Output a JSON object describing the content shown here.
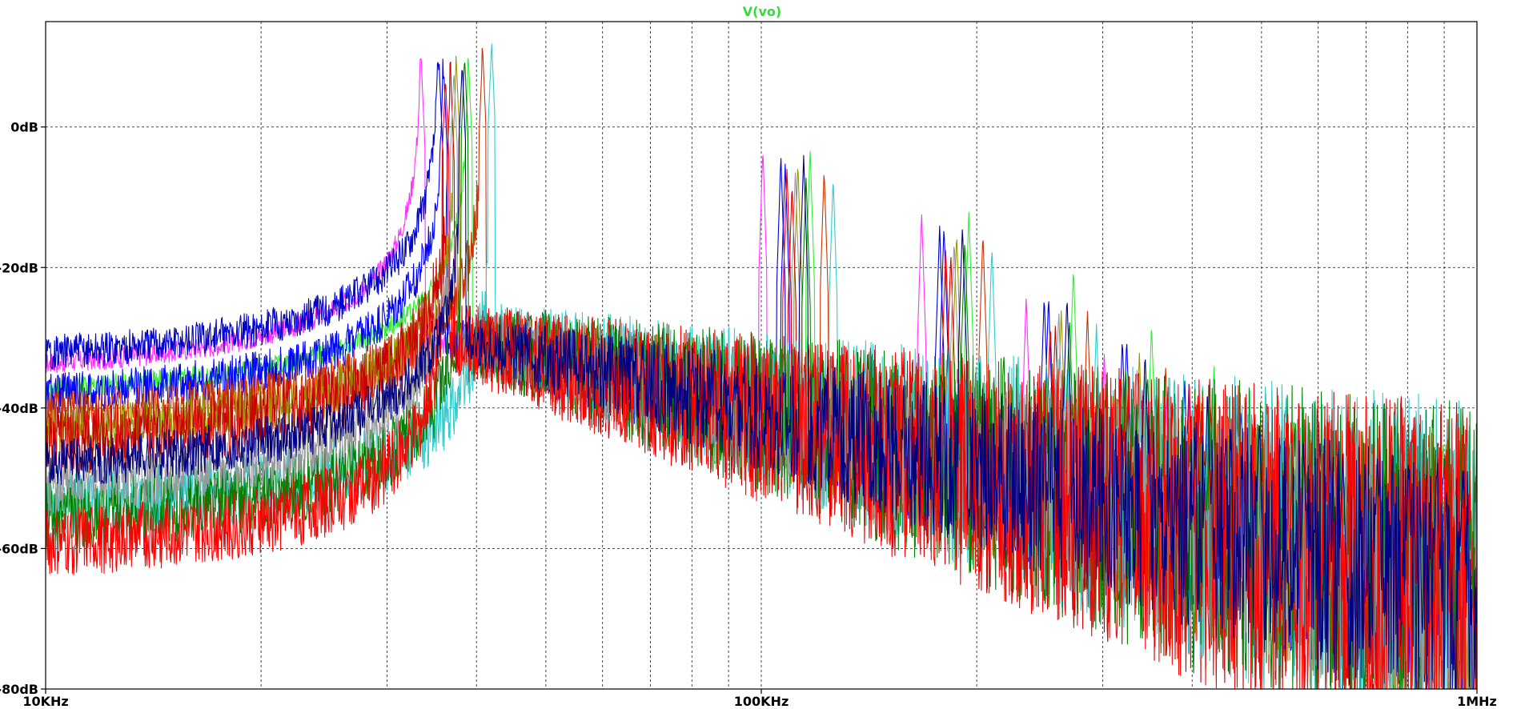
{
  "chart_data": {
    "type": "line",
    "title": "V(vo)",
    "title_color": "#33dd33",
    "xlabel": "",
    "ylabel": "",
    "x_scale": "log",
    "xlim": [
      10000,
      1000000
    ],
    "ylim": [
      -80,
      15
    ],
    "grid": true,
    "x_ticks": [
      {
        "value": 10000,
        "label": "10KHz"
      },
      {
        "value": 100000,
        "label": "100KHz"
      },
      {
        "value": 1000000,
        "label": "1MHz"
      }
    ],
    "y_ticks": [
      {
        "value": 0,
        "label": "0dB"
      },
      {
        "value": -20,
        "label": "-20dB"
      },
      {
        "value": -40,
        "label": "-40dB"
      },
      {
        "value": -60,
        "label": "-60dB"
      },
      {
        "value": -80,
        "label": "-80dB"
      }
    ],
    "series": [
      {
        "color": "#ff33ff",
        "fund_khz": 33.5,
        "low_db": -34.5,
        "peak_db": 9,
        "floor_db": -60,
        "noise": 1.5,
        "harm_db": [
          -3,
          -12,
          -24,
          -32,
          -38,
          -42,
          -45
        ]
      },
      {
        "color": "#0000cc",
        "fund_khz": 35.5,
        "low_db": -32.8,
        "peak_db": 8,
        "floor_db": -64,
        "noise": 2.5,
        "harm_db": [
          -4,
          -14,
          -24,
          -30,
          -36,
          -40,
          -44
        ]
      },
      {
        "color": "#33ee33",
        "fund_khz": 39.0,
        "low_db": -37.8,
        "peak_db": 9,
        "floor_db": -59,
        "noise": 1.5,
        "harm_db": [
          -3,
          -12,
          -20,
          -28,
          -34,
          -38,
          -42
        ]
      },
      {
        "color": "#0000ff",
        "fund_khz": 36.0,
        "low_db": -38.8,
        "peak_db": 8,
        "floor_db": -66,
        "noise": 3,
        "harm_db": [
          -5,
          -14,
          -24,
          -30,
          -36,
          -40,
          -44
        ]
      },
      {
        "color": "#cc3300",
        "fund_khz": 40.8,
        "low_db": -42.0,
        "peak_db": 11,
        "floor_db": -72,
        "noise": 4,
        "harm_db": [
          -6,
          -15,
          -26,
          -34,
          -40,
          -44,
          -48
        ]
      },
      {
        "color": "#999900",
        "fund_khz": 37.5,
        "low_db": -44.0,
        "peak_db": 9,
        "floor_db": -70,
        "noise": 3.5,
        "harm_db": [
          -5,
          -15,
          -26,
          -32,
          -38,
          -42,
          -46
        ]
      },
      {
        "color": "#cc0000",
        "fund_khz": 36.8,
        "low_db": -45.5,
        "peak_db": 7,
        "floor_db": -75,
        "noise": 5,
        "harm_db": [
          -8,
          -18,
          -28,
          -36,
          -42,
          -46,
          -50
        ]
      },
      {
        "color": "#33cccc",
        "fund_khz": 42.0,
        "low_db": -54.5,
        "peak_db": 12,
        "floor_db": -74,
        "noise": 5,
        "harm_db": [
          -7,
          -17,
          -28,
          -36,
          -42,
          -46,
          -50
        ]
      },
      {
        "color": "#008000",
        "fund_khz": 38.5,
        "low_db": -56.0,
        "peak_db": 10,
        "floor_db": -74,
        "noise": 5,
        "harm_db": [
          -7,
          -16,
          -27,
          -35,
          -41,
          -45,
          -49
        ]
      },
      {
        "color": "#999999",
        "fund_khz": 37.2,
        "low_db": -51.5,
        "peak_db": 8,
        "floor_db": -70,
        "noise": 4,
        "harm_db": [
          -6,
          -16,
          -26,
          -34,
          -40,
          -44,
          -48
        ]
      },
      {
        "color": "#ff0000",
        "fund_khz": 36.2,
        "low_db": -60.0,
        "peak_db": 7,
        "floor_db": -76,
        "noise": 5,
        "harm_db": [
          -6,
          -17,
          -28,
          -36,
          -42,
          -46,
          -50
        ]
      },
      {
        "color": "#000080",
        "fund_khz": 38.2,
        "low_db": -48.5,
        "peak_db": 9,
        "floor_db": -70,
        "noise": 3.5,
        "harm_db": [
          -4,
          -14,
          -24,
          -32,
          -38,
          -42,
          -46
        ]
      }
    ]
  }
}
